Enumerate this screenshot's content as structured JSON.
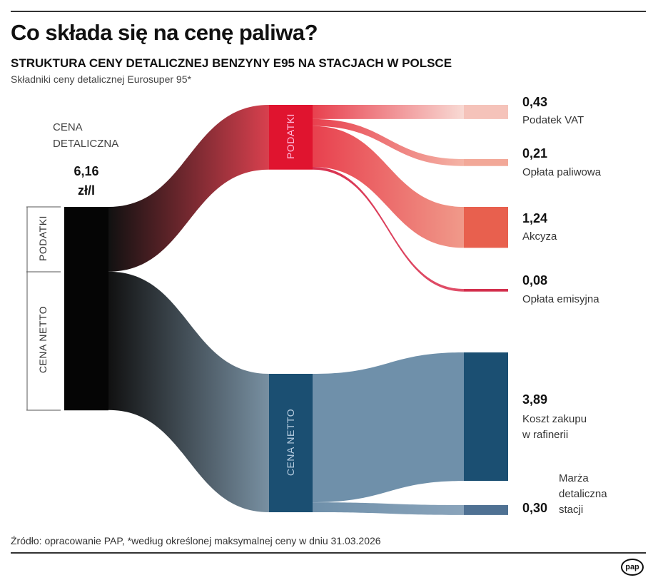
{
  "header": {
    "title": "Co składa się na cenę paliwa?",
    "subtitle": "STRUKTURA CENY DETALICZNEJ BENZYNY E95 NA STACJACH W POLSCE",
    "description": "Składniki ceny detalicznej Eurosuper 95*"
  },
  "chart_data": {
    "type": "sankey",
    "unit": "zł/l",
    "total": {
      "label_line1": "CENA",
      "label_line2": "DETALICZNA",
      "value": 6.16,
      "value_label": "6,16",
      "unit_label": "zł/l"
    },
    "left_segments": [
      "PODATKI",
      "CENA NETTO"
    ],
    "nodes": [
      {
        "id": "retail",
        "label": "CENA DETALICZNA",
        "color": "#050505"
      },
      {
        "id": "taxes",
        "label": "PODATKI",
        "color": "#e0142f"
      },
      {
        "id": "net",
        "label": "CENA NETTO",
        "color": "#1b4f72"
      },
      {
        "id": "vat",
        "label": "Podatek VAT",
        "value_label": "0,43",
        "color": "#f5c3ba"
      },
      {
        "id": "fuel_fee",
        "label": "Opłata paliwowa",
        "value_label": "0,21",
        "color": "#f2a898"
      },
      {
        "id": "excise",
        "label": "Akcyza",
        "value_label": "1,24",
        "color": "#e8604e"
      },
      {
        "id": "emission",
        "label": "Opłata emisyjna",
        "value_label": "0,08",
        "color": "#d3304e"
      },
      {
        "id": "refinery",
        "label_line1": "Koszt zakupu",
        "label_line2": "w rafinerii",
        "value_label": "3,89",
        "color": "#1b4f72"
      },
      {
        "id": "margin",
        "label_line1": "Marża",
        "label_line2": "detaliczna",
        "label_line3": "stacji",
        "value_label": "0,30",
        "color": "#4f7193"
      }
    ],
    "links": [
      {
        "source": "retail",
        "target": "taxes",
        "value": 1.96
      },
      {
        "source": "retail",
        "target": "net",
        "value": 4.19
      },
      {
        "source": "taxes",
        "target": "vat",
        "value": 0.43
      },
      {
        "source": "taxes",
        "target": "fuel_fee",
        "value": 0.21
      },
      {
        "source": "taxes",
        "target": "excise",
        "value": 1.24
      },
      {
        "source": "taxes",
        "target": "emission",
        "value": 0.08
      },
      {
        "source": "net",
        "target": "refinery",
        "value": 3.89
      },
      {
        "source": "net",
        "target": "margin",
        "value": 0.3
      }
    ]
  },
  "footer": {
    "source": "Źródło: opracowanie PAP, *według określonej maksymalnej ceny w dniu 31.03.2026",
    "logo": "pap"
  }
}
